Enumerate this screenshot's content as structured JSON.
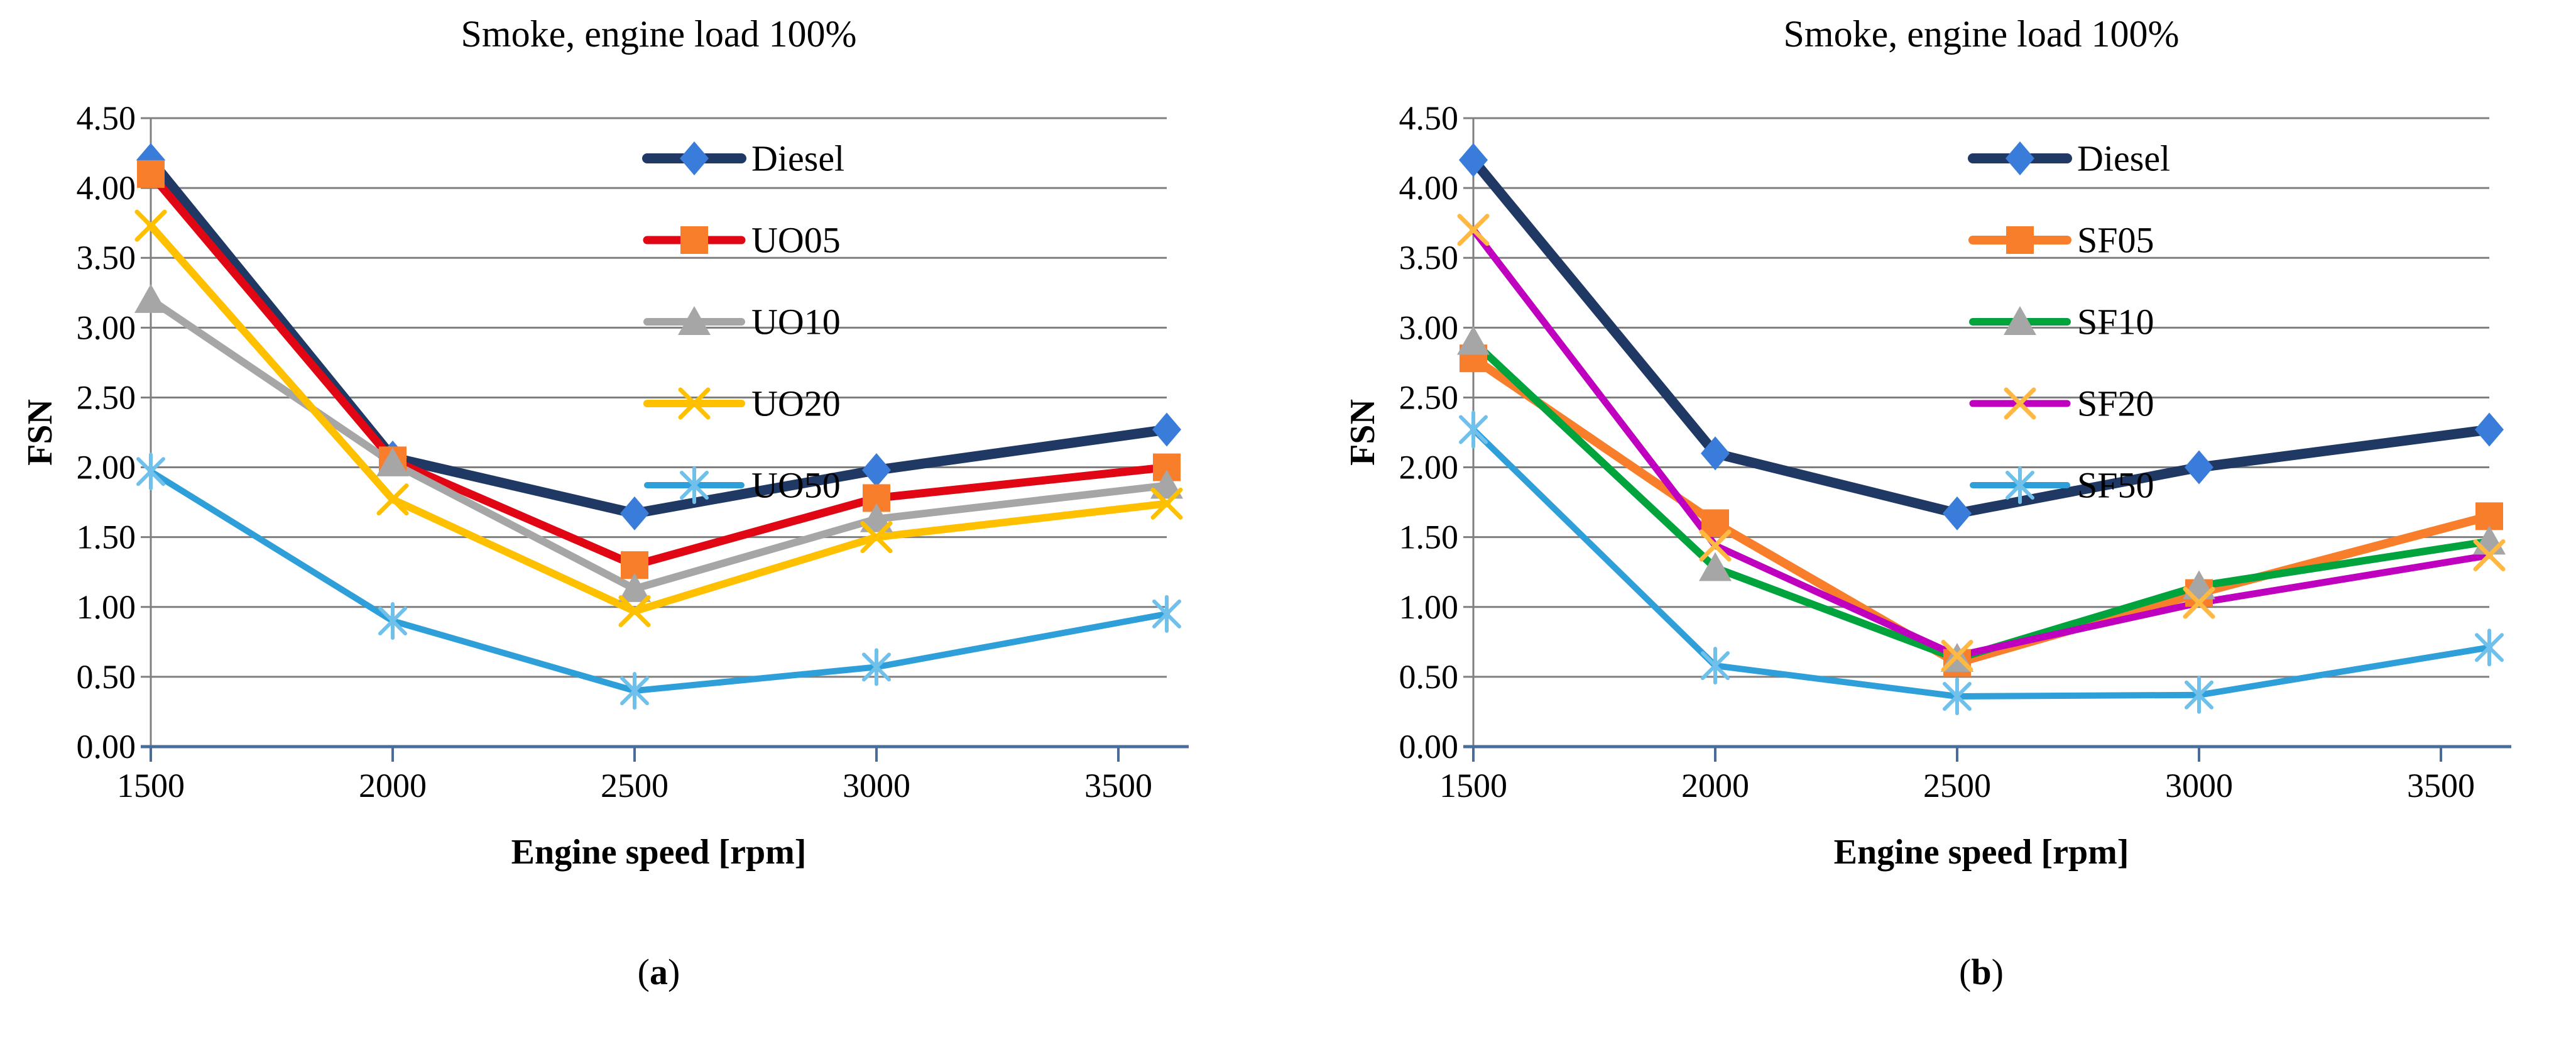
{
  "figure": {
    "background": "#FFFFFF",
    "grid_color": "#7F7F7F",
    "axis_color": "#4A6C9B",
    "text_color": "#000000"
  },
  "chart_data": [
    {
      "type": "line",
      "title": "Smoke, engine load 100%",
      "xlabel": "Engine speed [rpm]",
      "ylabel": "FSN",
      "caption": "(a)",
      "caption_letter": "a",
      "grid": true,
      "legend_position": "inside-upper-right",
      "x": [
        1500,
        2000,
        2500,
        3000,
        3600
      ],
      "xlim": [
        1500,
        3600
      ],
      "x_tick_values": [
        1500,
        2000,
        2500,
        3000,
        3500
      ],
      "x_tick_labels": [
        "1500",
        "2000",
        "2500",
        "3000",
        "3500"
      ],
      "ylim": [
        0,
        4.5
      ],
      "y_tick_step": 0.5,
      "y_tick_labels": [
        "0.00",
        "0.50",
        "1.00",
        "1.50",
        "2.00",
        "2.50",
        "3.00",
        "3.50",
        "4.00",
        "4.50"
      ],
      "series": [
        {
          "name": "Diesel",
          "line_color": "#1F3864",
          "line_width": 16,
          "marker": "diamond",
          "marker_color": "#3A7CD9",
          "values": [
            4.2,
            2.07,
            1.67,
            1.98,
            2.27
          ]
        },
        {
          "name": "UO05",
          "line_color": "#E00613",
          "line_width": 13,
          "marker": "square",
          "marker_color": "#F87E2B",
          "values": [
            4.1,
            2.05,
            1.3,
            1.78,
            2.0
          ]
        },
        {
          "name": "UO10",
          "line_color": "#A6A6A6",
          "line_width": 12,
          "marker": "triangle",
          "marker_color": "#A6A6A6",
          "values": [
            3.2,
            2.03,
            1.13,
            1.63,
            1.87
          ]
        },
        {
          "name": "UO20",
          "line_color": "#FFC000",
          "line_width": 12,
          "marker": "x",
          "marker_color": "#FFC000",
          "values": [
            3.73,
            1.77,
            0.97,
            1.5,
            1.74
          ]
        },
        {
          "name": "UO50",
          "line_color": "#2E9FD8",
          "line_width": 10,
          "marker": "asterisk",
          "marker_color": "#6FC0EB",
          "values": [
            1.97,
            0.9,
            0.4,
            0.57,
            0.95
          ]
        }
      ]
    },
    {
      "type": "line",
      "title": "Smoke, engine load 100%",
      "xlabel": "Engine speed [rpm]",
      "ylabel": "FSN",
      "caption": "(b)",
      "caption_letter": "b",
      "grid": true,
      "legend_position": "inside-upper-right",
      "x": [
        1500,
        2000,
        2500,
        3000,
        3600
      ],
      "xlim": [
        1500,
        3600
      ],
      "x_tick_values": [
        1500,
        2000,
        2500,
        3000,
        3500
      ],
      "x_tick_labels": [
        "1500",
        "2000",
        "2500",
        "3000",
        "3500"
      ],
      "ylim": [
        0,
        4.5
      ],
      "y_tick_step": 0.5,
      "y_tick_labels": [
        "0.00",
        "0.50",
        "1.00",
        "1.50",
        "2.00",
        "2.50",
        "3.00",
        "3.50",
        "4.00",
        "4.50"
      ],
      "series": [
        {
          "name": "Diesel",
          "line_color": "#1F3864",
          "line_width": 16,
          "marker": "diamond",
          "marker_color": "#3A7CD9",
          "values": [
            4.2,
            2.1,
            1.67,
            2.0,
            2.27
          ]
        },
        {
          "name": "SF05",
          "line_color": "#F87E2B",
          "line_width": 14,
          "marker": "square",
          "marker_color": "#F87E2B",
          "values": [
            2.78,
            1.6,
            0.6,
            1.1,
            1.65
          ]
        },
        {
          "name": "SF10",
          "line_color": "#00A33C",
          "line_width": 12,
          "marker": "triangle",
          "marker_color": "#A6A6A6",
          "values": [
            2.9,
            1.28,
            0.63,
            1.15,
            1.47
          ]
        },
        {
          "name": "SF20",
          "line_color": "#BF00BF",
          "line_width": 11,
          "marker": "x",
          "marker_color": "#FFB943",
          "values": [
            3.7,
            1.44,
            0.65,
            1.03,
            1.37
          ]
        },
        {
          "name": "SF50",
          "line_color": "#2E9FD8",
          "line_width": 10,
          "marker": "asterisk",
          "marker_color": "#6FC0EB",
          "values": [
            2.27,
            0.58,
            0.36,
            0.37,
            0.71
          ]
        }
      ]
    }
  ]
}
